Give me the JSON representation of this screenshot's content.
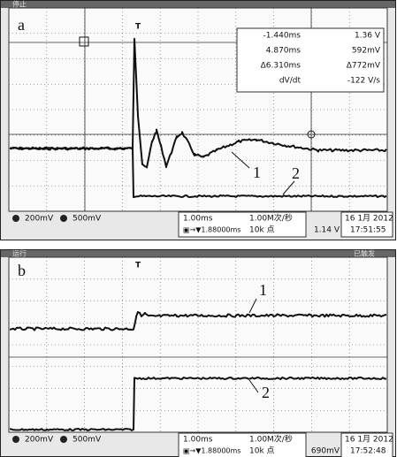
{
  "panel_a": {
    "label": "a",
    "status": "停止",
    "trigger": "T",
    "cursor_readout": [
      [
        "-1.440ms",
        "1.36 V"
      ],
      [
        "4.870ms",
        "592mV"
      ],
      [
        "Δ6.310ms",
        "Δ772mV"
      ],
      [
        "dV/dt",
        "-122 V/s"
      ]
    ],
    "curve_labels": [
      "1",
      "2"
    ],
    "bottom_bar": {
      "ch1_scale": "200mV",
      "ch2_scale": "500mV",
      "timebase": "1.00ms",
      "sample_rate": "1.00M次/秒",
      "delay": "▣→▼1.88000ms",
      "record_length": "10k 点",
      "trigger_level": "1.14 V",
      "date": "16 1月 2012",
      "time": "17:51:55"
    }
  },
  "panel_b": {
    "label": "b",
    "status": "运行",
    "trigger_state": "已触发",
    "trigger": "T",
    "curve_labels": [
      "1",
      "2"
    ],
    "bottom_bar": {
      "ch1_scale": "200mV",
      "ch2_scale": "500mV",
      "timebase": "1.00ms",
      "sample_rate": "1.00M次/秒",
      "delay": "▣→▼1.88000ms",
      "record_length": "10k 点",
      "trigger_level": "690mV",
      "date": "16 1月 2012",
      "time": "17:52:48"
    }
  }
}
